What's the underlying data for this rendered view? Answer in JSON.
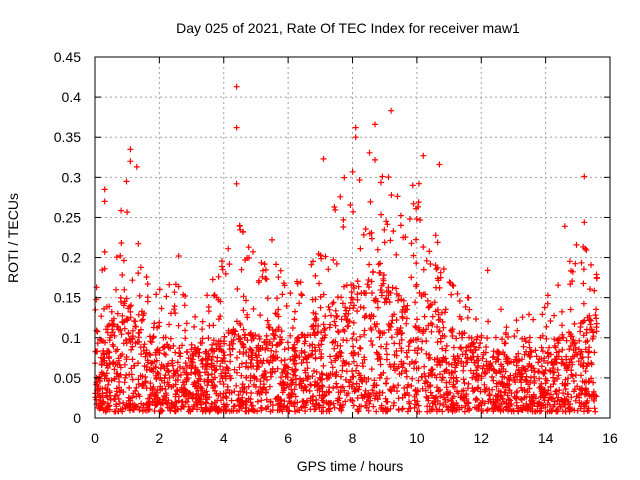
{
  "chart_data": {
    "type": "scatter",
    "title": "Day 025 of 2021, Rate Of TEC Index for receiver maw1",
    "xlabel": "GPS time / hours",
    "ylabel": "ROTI / TECUs",
    "xlim": [
      0,
      16
    ],
    "ylim": [
      0,
      0.45
    ],
    "x_ticks": [
      0,
      2,
      4,
      6,
      8,
      10,
      12,
      14,
      16
    ],
    "x_tick_labels": [
      "0",
      "2",
      "4",
      "6",
      "8",
      "10",
      "12",
      "14",
      "16"
    ],
    "y_ticks": [
      0,
      0.05,
      0.1,
      0.15,
      0.2,
      0.25,
      0.3,
      0.35,
      0.4,
      0.45
    ],
    "y_tick_labels": [
      "0",
      "0.05",
      "0.1",
      "0.15",
      "0.2",
      "0.25",
      "0.3",
      "0.35",
      "0.4",
      "0.45"
    ],
    "grid": true,
    "marker": "+",
    "color": "#ff0000",
    "series": [
      {
        "name": "ROTI maw1",
        "x_range": [
          0.0,
          15.6
        ],
        "notable_points": [
          {
            "x": 4.4,
            "y": 0.413
          },
          {
            "x": 4.4,
            "y": 0.362
          },
          {
            "x": 4.4,
            "y": 0.292
          },
          {
            "x": 9.2,
            "y": 0.383
          },
          {
            "x": 8.7,
            "y": 0.366
          },
          {
            "x": 8.1,
            "y": 0.362
          },
          {
            "x": 8.1,
            "y": 0.35
          },
          {
            "x": 1.1,
            "y": 0.335
          },
          {
            "x": 1.1,
            "y": 0.32
          },
          {
            "x": 1.3,
            "y": 0.313
          },
          {
            "x": 7.1,
            "y": 0.323
          },
          {
            "x": 10.2,
            "y": 0.327
          },
          {
            "x": 10.7,
            "y": 0.316
          },
          {
            "x": 15.2,
            "y": 0.301
          },
          {
            "x": 0.3,
            "y": 0.285
          },
          {
            "x": 0.3,
            "y": 0.27
          },
          {
            "x": 0.3,
            "y": 0.207
          },
          {
            "x": 15.2,
            "y": 0.244
          },
          {
            "x": 14.6,
            "y": 0.239
          },
          {
            "x": 12.2,
            "y": 0.184
          },
          {
            "x": 2.6,
            "y": 0.202
          },
          {
            "x": 5.5,
            "y": 0.222
          }
        ],
        "density_profile": {
          "description": "dense cloud of + markers, typical 0.01–0.12 TECU, envelope peaks per time band",
          "hours": [
            0,
            0.5,
            1,
            1.5,
            2,
            2.5,
            3,
            3.5,
            4,
            4.5,
            5,
            5.5,
            6,
            6.5,
            7,
            7.5,
            8,
            8.5,
            9,
            9.5,
            10,
            10.5,
            11,
            11.5,
            12,
            12.5,
            13,
            13.5,
            14,
            14.5,
            15,
            15.5
          ],
          "upper_envelope": [
            0.18,
            0.19,
            0.3,
            0.18,
            0.16,
            0.17,
            0.14,
            0.16,
            0.2,
            0.24,
            0.2,
            0.2,
            0.17,
            0.17,
            0.22,
            0.28,
            0.32,
            0.33,
            0.34,
            0.26,
            0.3,
            0.24,
            0.17,
            0.15,
            0.15,
            0.14,
            0.12,
            0.13,
            0.15,
            0.17,
            0.22,
            0.2
          ],
          "typical_level": [
            0.06,
            0.07,
            0.09,
            0.07,
            0.06,
            0.05,
            0.05,
            0.05,
            0.06,
            0.07,
            0.06,
            0.07,
            0.06,
            0.06,
            0.08,
            0.09,
            0.1,
            0.11,
            0.11,
            0.09,
            0.1,
            0.09,
            0.07,
            0.06,
            0.06,
            0.05,
            0.04,
            0.05,
            0.05,
            0.06,
            0.07,
            0.08
          ]
        }
      }
    ]
  }
}
